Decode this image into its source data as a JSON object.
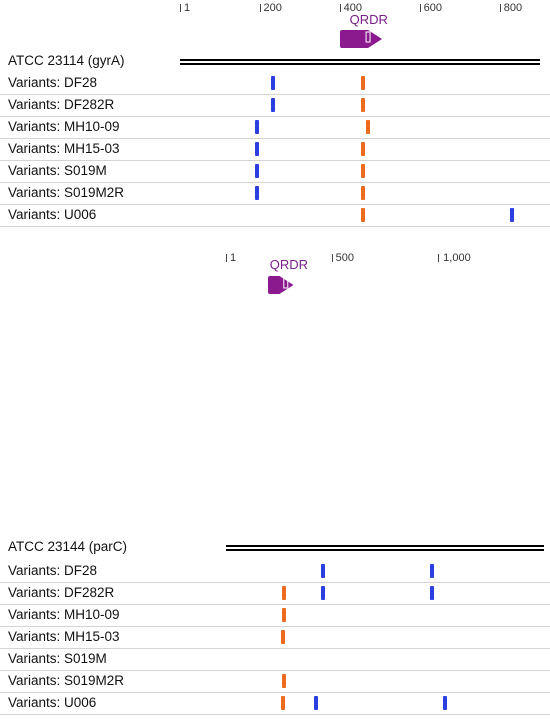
{
  "colors": {
    "blue": "#2b3fe0",
    "orange": "#ee6a1e",
    "feature": "#8a1a8e"
  },
  "panels": [
    {
      "ticks": [
        {
          "pos": 1,
          "label": "1"
        },
        {
          "pos": 200,
          "label": "200"
        },
        {
          "pos": 400,
          "label": "400"
        },
        {
          "pos": 600,
          "label": "600"
        },
        {
          "pos": 800,
          "label": "800"
        }
      ],
      "axis_min": 1,
      "axis_max": 900,
      "feature": {
        "label": "QRDR",
        "start": 400,
        "end": 505,
        "icon": "gene-arrow-icon"
      },
      "reference": {
        "label": "ATCC 23114 (gyrA)"
      },
      "rows": [
        {
          "label": "Variants: DF28",
          "marks": [
            {
              "pos": 233,
              "color": "blue"
            },
            {
              "pos": 459,
              "color": "orange"
            }
          ]
        },
        {
          "label": "Variants: DF282R",
          "marks": [
            {
              "pos": 233,
              "color": "blue"
            },
            {
              "pos": 459,
              "color": "orange"
            }
          ]
        },
        {
          "label": "Variants: MH10-09",
          "marks": [
            {
              "pos": 193,
              "color": "blue"
            },
            {
              "pos": 470,
              "color": "orange"
            }
          ]
        },
        {
          "label": "Variants: MH15-03",
          "marks": [
            {
              "pos": 193,
              "color": "blue"
            },
            {
              "pos": 459,
              "color": "orange"
            }
          ]
        },
        {
          "label": "Variants: S019M",
          "marks": [
            {
              "pos": 193,
              "color": "blue"
            },
            {
              "pos": 459,
              "color": "orange"
            }
          ]
        },
        {
          "label": "Variants: S019M2R",
          "marks": [
            {
              "pos": 193,
              "color": "blue"
            },
            {
              "pos": 459,
              "color": "orange"
            }
          ]
        },
        {
          "label": "Variants: U006",
          "marks": [
            {
              "pos": 459,
              "color": "orange"
            },
            {
              "pos": 830,
              "color": "blue"
            }
          ]
        }
      ]
    },
    {
      "ticks": [
        {
          "pos": 1,
          "label": "1"
        },
        {
          "pos": 500,
          "label": "500"
        },
        {
          "pos": 1000,
          "label": "1,000"
        }
      ],
      "axis_min": 1,
      "axis_max": 1500,
      "feature": {
        "label": "QRDR",
        "start": 200,
        "end": 320,
        "icon": "gene-arrow-icon"
      },
      "reference": {
        "label": "ATCC 23144 (parC)"
      },
      "rows": [
        {
          "label": "Variants: DF28",
          "marks": [
            {
              "pos": 460,
              "color": "blue"
            },
            {
              "pos": 970,
              "color": "blue"
            }
          ]
        },
        {
          "label": "Variants: DF282R",
          "marks": [
            {
              "pos": 273,
              "color": "orange"
            },
            {
              "pos": 460,
              "color": "blue"
            },
            {
              "pos": 970,
              "color": "blue"
            }
          ]
        },
        {
          "label": "Variants: MH10-09",
          "marks": [
            {
              "pos": 273,
              "color": "orange"
            }
          ]
        },
        {
          "label": "Variants: MH15-03",
          "marks": [
            {
              "pos": 268,
              "color": "orange"
            }
          ]
        },
        {
          "label": "Variants: S019M",
          "marks": []
        },
        {
          "label": "Variants: S019M2R",
          "marks": [
            {
              "pos": 273,
              "color": "orange"
            }
          ]
        },
        {
          "label": "Variants: U006",
          "marks": [
            {
              "pos": 268,
              "color": "orange"
            },
            {
              "pos": 423,
              "color": "blue"
            },
            {
              "pos": 1032,
              "color": "blue"
            }
          ]
        }
      ]
    }
  ]
}
